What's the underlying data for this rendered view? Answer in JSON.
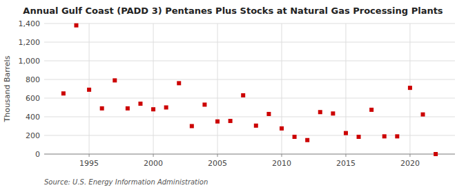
{
  "chart_data": {
    "type": "scatter",
    "title": "Annual Gulf Coast (PADD 3) Pentanes Plus Stocks at Natural Gas Processing Plants",
    "ylabel": "Thousand Barrels",
    "annotations": [
      "Source: U.S. Energy Information Administration"
    ],
    "x": [
      1993,
      1994,
      1995,
      1996,
      1997,
      1998,
      1999,
      2000,
      2001,
      2002,
      2003,
      2004,
      2005,
      2006,
      2007,
      2008,
      2009,
      2010,
      2011,
      2012,
      2013,
      2014,
      2015,
      2016,
      2017,
      2018,
      2019,
      2020,
      2021,
      2022
    ],
    "values": [
      650,
      1380,
      690,
      490,
      790,
      490,
      540,
      480,
      500,
      760,
      300,
      530,
      350,
      355,
      630,
      305,
      430,
      275,
      185,
      150,
      450,
      435,
      225,
      185,
      475,
      190,
      190,
      710,
      425,
      0
    ],
    "color": "#cc0000",
    "marker": "square",
    "xlim": [
      1991.5,
      2023.5
    ],
    "ylim": [
      0,
      1400
    ],
    "xticks": [
      1995,
      2000,
      2005,
      2010,
      2015,
      2020
    ],
    "yticks": [
      0,
      200,
      400,
      600,
      800,
      {
        "value": 1000,
        "label": "1,000"
      },
      {
        "value": 1200,
        "label": "1,200"
      },
      {
        "value": 1400,
        "label": "1,400"
      }
    ],
    "grid": true
  }
}
